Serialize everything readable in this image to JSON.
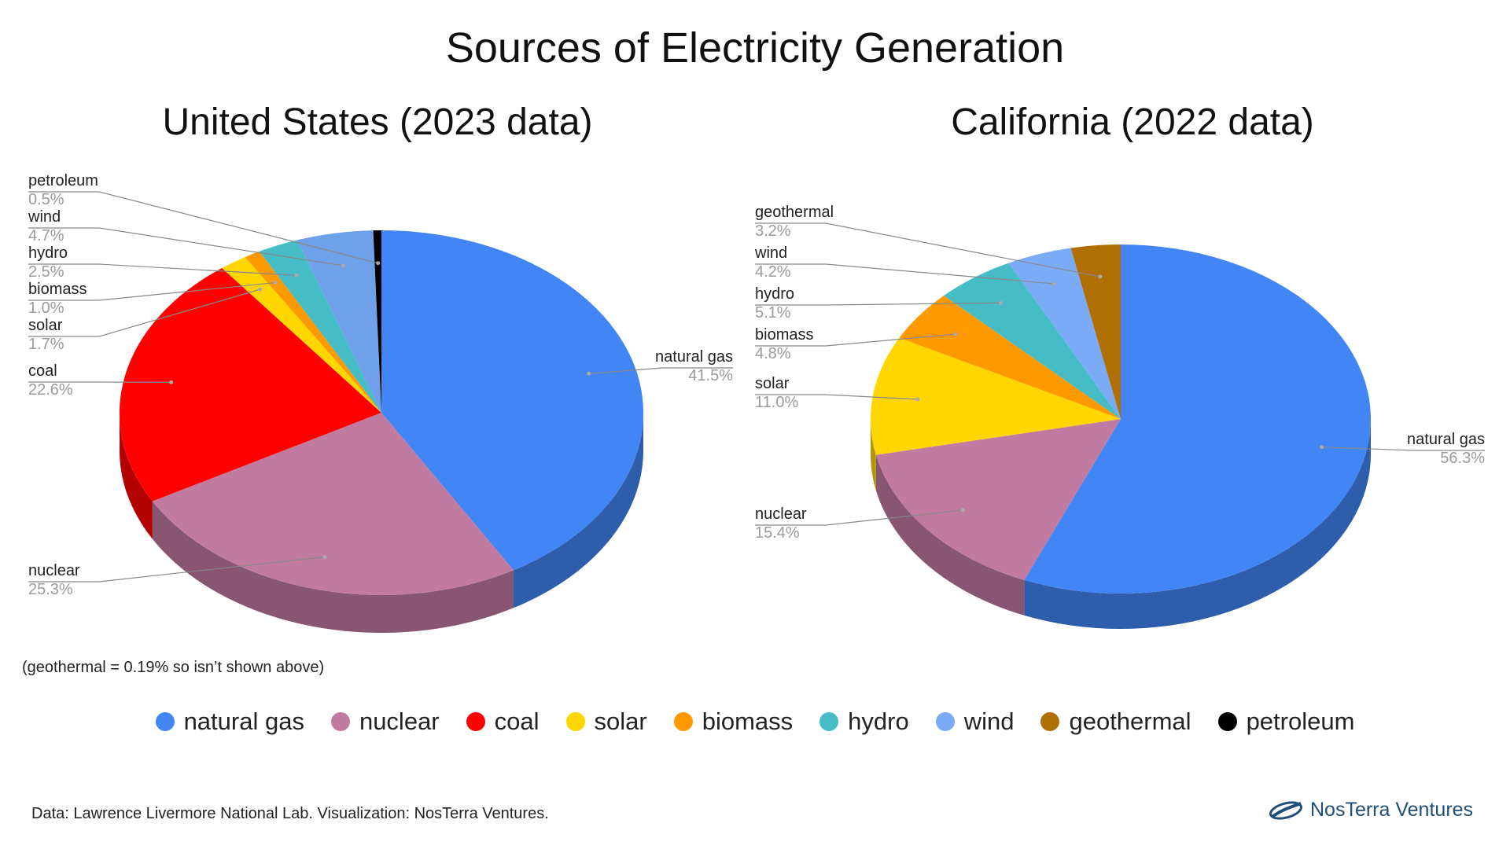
{
  "title": "Sources of Electricity Generation",
  "footnote": "(geothermal = 0.19% so isn’t shown above)",
  "source": "Data: Lawrence Livermore National Lab. Visualization: NosTerra Ventures.",
  "logo_text": "NosTerra Ventures",
  "legend": [
    {
      "label": "natural gas",
      "color": "#4285f4"
    },
    {
      "label": "nuclear",
      "color": "#c27ba0"
    },
    {
      "label": "coal",
      "color": "#ff0000"
    },
    {
      "label": "solar",
      "color": "#ffd600"
    },
    {
      "label": "biomass",
      "color": "#ff9900"
    },
    {
      "label": "hydro",
      "color": "#46bdc6"
    },
    {
      "label": "wind",
      "color": "#7baaf7"
    },
    {
      "label": "geothermal",
      "color": "#b06f05"
    },
    {
      "label": "petroleum",
      "color": "#000000"
    }
  ],
  "chart_data": [
    {
      "type": "pie",
      "title": "United States (2023 data)",
      "slices": [
        {
          "label": "natural gas",
          "value": 41.5,
          "value_label": "41.5%",
          "color": "#4285f4"
        },
        {
          "label": "nuclear",
          "value": 25.3,
          "value_label": "25.3%",
          "color": "#c27ba0"
        },
        {
          "label": "coal",
          "value": 22.6,
          "value_label": "22.6%",
          "color": "#ff0000"
        },
        {
          "label": "solar",
          "value": 1.7,
          "value_label": "1.7%",
          "color": "#ffd600"
        },
        {
          "label": "biomass",
          "value": 1.0,
          "value_label": "1.0%",
          "color": "#ff9900"
        },
        {
          "label": "hydro",
          "value": 2.5,
          "value_label": "2.5%",
          "color": "#46bdc6"
        },
        {
          "label": "wind",
          "value": 4.7,
          "value_label": "4.7%",
          "color": "#6fa0ea"
        },
        {
          "label": "petroleum",
          "value": 0.5,
          "value_label": "0.5%",
          "color": "#000000"
        }
      ]
    },
    {
      "type": "pie",
      "title": "California (2022 data)",
      "slices": [
        {
          "label": "natural gas",
          "value": 56.3,
          "value_label": "56.3%",
          "color": "#4285f4"
        },
        {
          "label": "nuclear",
          "value": 15.4,
          "value_label": "15.4%",
          "color": "#c27ba0"
        },
        {
          "label": "solar",
          "value": 11.0,
          "value_label": "11.0%",
          "color": "#ffd600"
        },
        {
          "label": "biomass",
          "value": 4.8,
          "value_label": "4.8%",
          "color": "#ff9900"
        },
        {
          "label": "hydro",
          "value": 5.1,
          "value_label": "5.1%",
          "color": "#46bdc6"
        },
        {
          "label": "wind",
          "value": 4.2,
          "value_label": "4.2%",
          "color": "#7baaf7"
        },
        {
          "label": "geothermal",
          "value": 3.2,
          "value_label": "3.2%",
          "color": "#b06f05"
        }
      ]
    }
  ]
}
